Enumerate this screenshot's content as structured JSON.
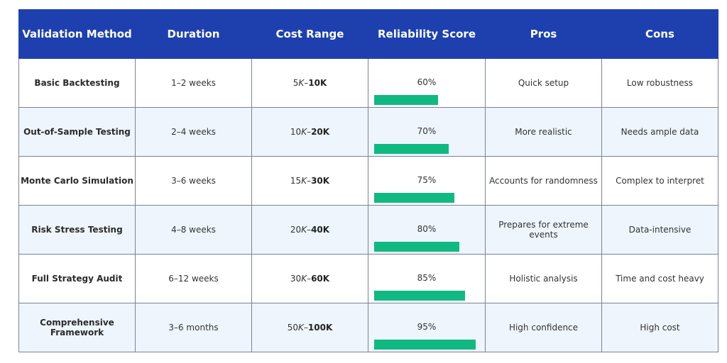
{
  "headers": [
    "Validation Method",
    "Duration",
    "Cost Range",
    "Reliability Score",
    "Pros",
    "Cons"
  ],
  "rows": [
    {
      "method": "Basic Backtesting",
      "duration": "1–2 weeks",
      "cost_low": "5",
      "cost_high": "10",
      "reliability_label": "60%",
      "reliability": 60,
      "pros": "Quick setup",
      "cons": "Low robustness"
    },
    {
      "method": "Out-of-Sample Testing",
      "duration": "2–4 weeks",
      "cost_low": "10",
      "cost_high": "20",
      "reliability_label": "70%",
      "reliability": 70,
      "pros": "More realistic",
      "cons": "Needs ample data"
    },
    {
      "method": "Monte Carlo Simulation",
      "duration": "3–6 weeks",
      "cost_low": "15",
      "cost_high": "30",
      "reliability_label": "75%",
      "reliability": 75,
      "pros": "Accounts for randomness",
      "cons": "Complex to interpret"
    },
    {
      "method": "Risk Stress Testing",
      "duration": "4–8 weeks",
      "cost_low": "20",
      "cost_high": "40",
      "reliability_label": "80%",
      "reliability": 80,
      "pros": "Prepares for extreme events",
      "cons": "Data-intensive"
    },
    {
      "method": "Full Strategy Audit",
      "duration": "6–12 weeks",
      "cost_low": "30",
      "cost_high": "60",
      "reliability_label": "85%",
      "reliability": 85,
      "pros": "Holistic analysis",
      "cons": "Time and cost heavy"
    },
    {
      "method": "Comprehensive Framework",
      "duration": "3–6 months",
      "cost_low": "50",
      "cost_high": "100",
      "reliability_label": "95%",
      "reliability": 95,
      "pros": "High confidence",
      "cons": "High cost"
    }
  ],
  "cost_unit": "K",
  "cost_separator": "–",
  "colors": {
    "header_bg": "#1e40af",
    "bar": "#10b981",
    "row_alt": "#eef5fd"
  }
}
